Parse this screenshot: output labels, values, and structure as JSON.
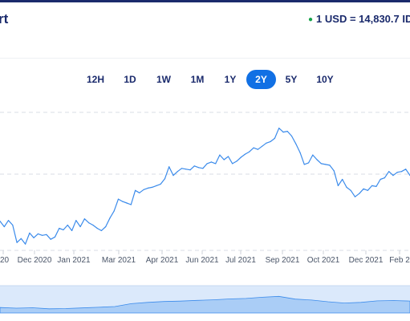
{
  "header": {
    "title_fragment": "rt",
    "rate_text": "1 USD = 14,830.7 ID",
    "status_color": "#16a34a"
  },
  "tabs": [
    {
      "label": "12H",
      "active": false
    },
    {
      "label": "1D",
      "active": false
    },
    {
      "label": "1W",
      "active": false
    },
    {
      "label": "1M",
      "active": false
    },
    {
      "label": "1Y",
      "active": false
    },
    {
      "label": "2Y",
      "active": true
    },
    {
      "label": "5Y",
      "active": false
    },
    {
      "label": "10Y",
      "active": false
    }
  ],
  "colors": {
    "accent": "#1170e4",
    "line": "#3b8beb",
    "navigator_fill": "#aacdf6",
    "navigator_bg": "#dbe9fb",
    "text": "#1a2a6c"
  },
  "chart_data": {
    "type": "line",
    "grid": true,
    "x_tick_labels": [
      "20",
      "Dec 2020",
      "Jan 2021",
      "Mar 2021",
      "Apr 2021",
      "Jun 2021",
      "Jul 2021",
      "Sep 2021",
      "Oct 2021",
      "Dec 2021",
      "Feb 2"
    ],
    "series": [
      {
        "values": [
          14170,
          14100,
          14180,
          14120,
          13900,
          13950,
          13880,
          14020,
          13960,
          14010,
          13990,
          14000,
          13940,
          13970,
          14080,
          14060,
          14120,
          14050,
          14180,
          14100,
          14200,
          14150,
          14120,
          14080,
          14050,
          14100,
          14210,
          14300,
          14450,
          14420,
          14400,
          14380,
          14560,
          14530,
          14570,
          14590,
          14600,
          14620,
          14640,
          14710,
          14860,
          14750,
          14800,
          14840,
          14830,
          14820,
          14870,
          14850,
          14840,
          14900,
          14920,
          14900,
          15010,
          14950,
          14990,
          14900,
          14930,
          14980,
          15020,
          15050,
          15100,
          15080,
          15120,
          15160,
          15180,
          15220,
          15350,
          15300,
          15310,
          15250,
          15150,
          15040,
          14890,
          14910,
          15010,
          14950,
          14900,
          14890,
          14880,
          14810,
          14620,
          14700,
          14600,
          14560,
          14480,
          14520,
          14580,
          14560,
          14620,
          14610,
          14700,
          14720,
          14800,
          14750,
          14790,
          14800,
          14830,
          14750
        ]
      }
    ],
    "navigator_values": [
      14160,
      14100,
      14140,
      14040,
      14060,
      14120,
      14180,
      14250,
      14520,
      14640,
      14720,
      14760,
      14830,
      14880,
      14960,
      15010,
      15120,
      15200,
      14950,
      14860,
      14700,
      14580,
      14640,
      14780,
      14810,
      14770
    ]
  }
}
